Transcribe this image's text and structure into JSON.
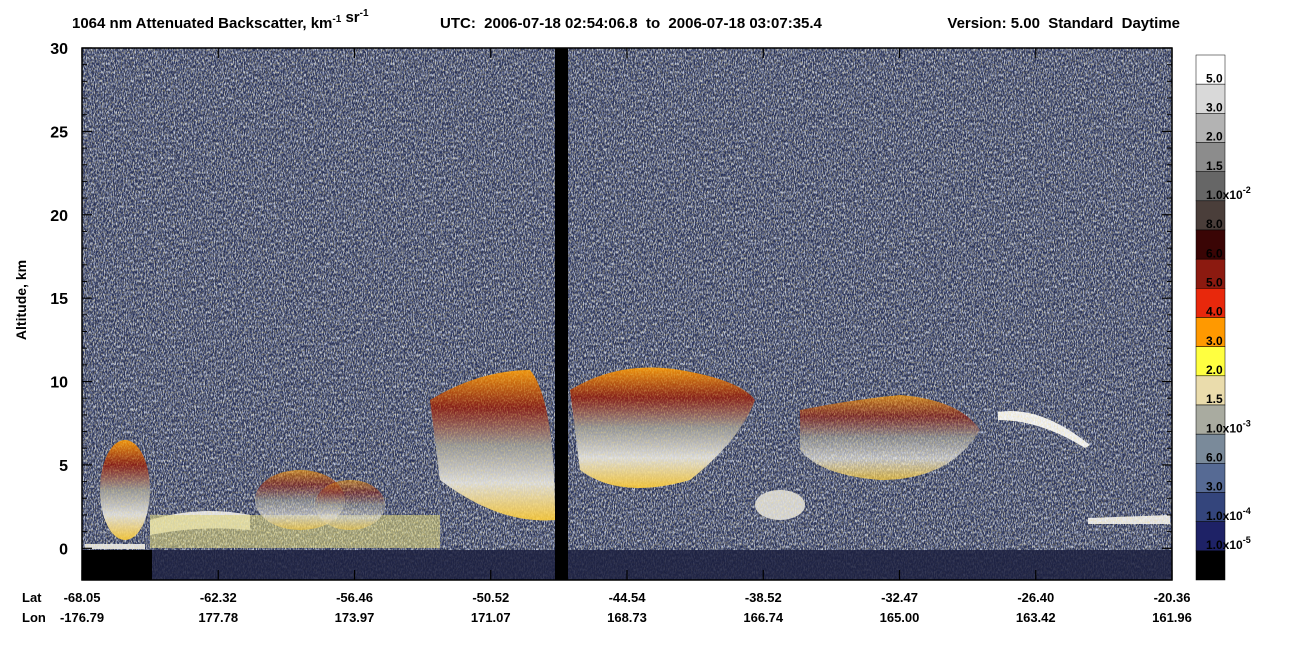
{
  "chart_data": {
    "type": "curtain",
    "title_parts": [
      {
        "text": "1064 nm Attenuated Backscatter, km"
      },
      {
        "sup": "-1"
      },
      {
        "text": " sr"
      },
      {
        "sup": "-1"
      }
    ],
    "time_range": "UTC:  2006-07-18 02:54:06.8  to  2006-07-18 03:07:35.4",
    "version": "Version: 5.00  Standard  Daytime",
    "y_label": "Altitude, km",
    "ylim": [
      -1.9,
      30
    ],
    "yticks": [
      0,
      5,
      10,
      15,
      20,
      25,
      30
    ],
    "lat_label": "Lat",
    "lon_label": "Lon",
    "lat": [
      "-68.05",
      "-62.32",
      "-56.46",
      "-50.52",
      "-44.54",
      "-38.52",
      "-32.47",
      "-26.40",
      "-20.36"
    ],
    "lon": [
      "-176.79",
      "177.78",
      "173.97",
      "171.07",
      "168.73",
      "166.74",
      "165.00",
      "163.42",
      "161.96"
    ],
    "colorbar": {
      "colors": [
        "#ffffff",
        "#d9d9d9",
        "#b3b3b3",
        "#8c8c8c",
        "#666666",
        "#4a3e3a",
        "#3a0505",
        "#8c1a10",
        "#e8280c",
        "#ff9900",
        "#ffff40",
        "#eadcac",
        "#a9aba0",
        "#7a8a9a",
        "#566a94",
        "#34457c",
        "#1e2266",
        "#000000"
      ],
      "labels": [
        {
          "text": "5.0"
        },
        {
          "text": "3.0"
        },
        {
          "text": "2.0"
        },
        {
          "text": "1.5"
        },
        {
          "text": "1.0x10",
          "sup": "-2"
        },
        {
          "text": "8.0"
        },
        {
          "text": "6.0"
        },
        {
          "text": "5.0"
        },
        {
          "text": "4.0"
        },
        {
          "text": "3.0"
        },
        {
          "text": "2.0"
        },
        {
          "text": "1.5"
        },
        {
          "text": "1.0x10",
          "sup": "-3"
        },
        {
          "text": "6.0"
        },
        {
          "text": "3.0"
        },
        {
          "text": "1.0x10",
          "sup": "-4"
        },
        {
          "text": "1.0x10",
          "sup": "-5"
        }
      ]
    }
  }
}
